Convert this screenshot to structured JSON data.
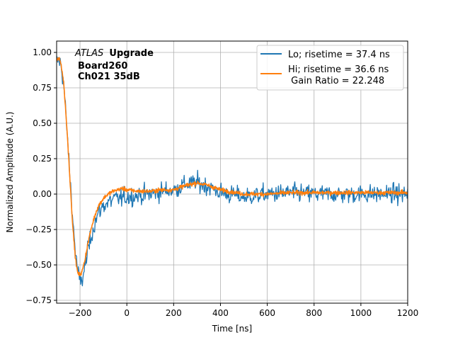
{
  "chart_data": {
    "type": "line",
    "title": "",
    "xlabel": "Time [ns]",
    "ylabel": "Normalized Amplitude (A.U.)",
    "xlim": [
      -300,
      1200
    ],
    "ylim": [
      -0.77,
      1.08
    ],
    "xticks": [
      -200,
      0,
      200,
      400,
      600,
      800,
      1000,
      1200
    ],
    "xtick_labels": [
      "−200",
      "0",
      "200",
      "400",
      "600",
      "800",
      "1000",
      "1200"
    ],
    "yticks": [
      -0.75,
      -0.5,
      -0.25,
      0.0,
      0.25,
      0.5,
      0.75,
      1.0
    ],
    "ytick_labels": [
      "−0.75",
      "−0.50",
      "−0.25",
      "0.00",
      "0.25",
      "0.50",
      "0.75",
      "1.00"
    ],
    "grid": true,
    "legend_position": "top-right",
    "annotation": {
      "italic": "ATLAS",
      "bold": "Upgrade",
      "line2": "Board260",
      "line3": "Ch021 35dB"
    },
    "series": [
      {
        "name": "Lo; risetime = 37.4 ns",
        "color": "#1f77b4",
        "noise": 0.055,
        "x": [
          -300,
          -290,
          -280,
          -270,
          -260,
          -250,
          -240,
          -230,
          -220,
          -210,
          -200,
          -190,
          -180,
          -170,
          -160,
          -150,
          -140,
          -130,
          -120,
          -100,
          -80,
          -60,
          -40,
          -20,
          0,
          50,
          100,
          150,
          200,
          250,
          300,
          350,
          400,
          500,
          600,
          700,
          800,
          900,
          1000,
          1100,
          1200
        ],
        "values": [
          0.93,
          0.95,
          0.9,
          0.78,
          0.55,
          0.3,
          0.05,
          -0.2,
          -0.4,
          -0.55,
          -0.62,
          -0.6,
          -0.52,
          -0.43,
          -0.35,
          -0.28,
          -0.22,
          -0.17,
          -0.13,
          -0.08,
          -0.06,
          -0.04,
          -0.03,
          -0.03,
          -0.02,
          -0.01,
          0.0,
          0.02,
          0.03,
          0.07,
          0.08,
          0.05,
          0.01,
          -0.02,
          0.0,
          0.01,
          0.0,
          0.0,
          0.0,
          0.0,
          0.0
        ]
      },
      {
        "name": "Hi; risetime = 36.6 ns\n Gain Ratio = 22.248",
        "color": "#ff7f0e",
        "noise": 0.012,
        "x": [
          -300,
          -290,
          -280,
          -270,
          -260,
          -250,
          -240,
          -230,
          -220,
          -210,
          -200,
          -190,
          -180,
          -170,
          -160,
          -150,
          -140,
          -130,
          -120,
          -100,
          -80,
          -60,
          -40,
          -20,
          0,
          50,
          100,
          150,
          200,
          250,
          300,
          350,
          400,
          500,
          600,
          700,
          800,
          900,
          1000,
          1100,
          1200
        ],
        "values": [
          0.94,
          0.96,
          0.91,
          0.79,
          0.56,
          0.3,
          0.02,
          -0.25,
          -0.45,
          -0.56,
          -0.57,
          -0.54,
          -0.47,
          -0.38,
          -0.3,
          -0.23,
          -0.17,
          -0.12,
          -0.08,
          -0.03,
          0.0,
          0.02,
          0.03,
          0.04,
          0.03,
          0.02,
          0.02,
          0.03,
          0.03,
          0.06,
          0.08,
          0.06,
          0.03,
          0.0,
          0.0,
          0.01,
          0.01,
          0.01,
          0.01,
          0.01,
          0.01
        ]
      }
    ]
  }
}
